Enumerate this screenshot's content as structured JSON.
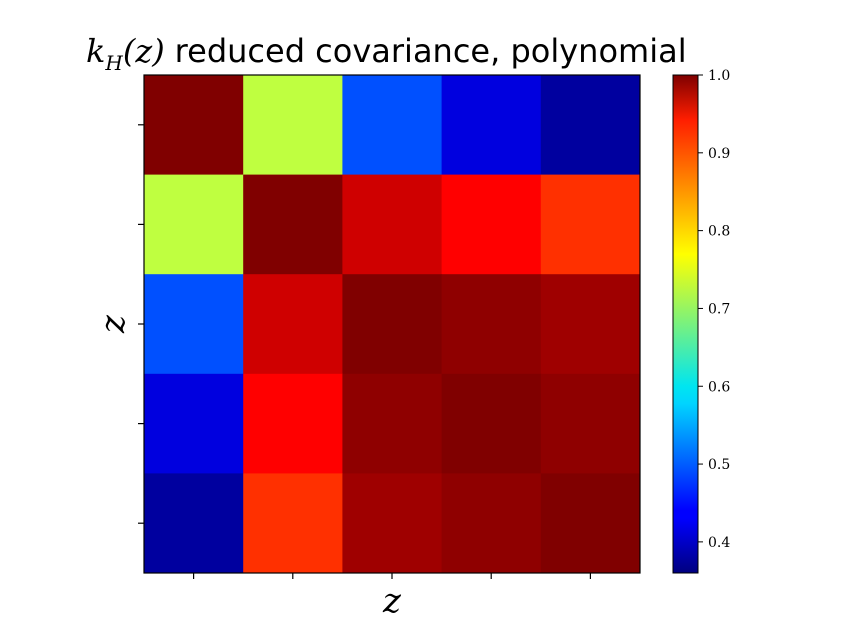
{
  "chart_data": {
    "type": "heatmap",
    "title_math": "k",
    "title_subscript": "H",
    "title_math_args": "(z)",
    "title_text": "reduced covariance, polynomial",
    "xlabel": "z",
    "ylabel": "z",
    "colormap": "jet",
    "color_range": [
      0.36,
      1.0
    ],
    "matrix": [
      [
        1.0,
        0.72,
        0.49,
        0.42,
        0.38
      ],
      [
        0.72,
        1.0,
        0.95,
        0.92,
        0.89
      ],
      [
        0.49,
        0.95,
        1.0,
        0.99,
        0.98
      ],
      [
        0.42,
        0.92,
        0.99,
        1.0,
        0.99
      ],
      [
        0.38,
        0.89,
        0.98,
        0.99,
        1.0
      ]
    ],
    "colorbar_ticks": [
      "1.0",
      "0.9",
      "0.8",
      "0.7",
      "0.6",
      "0.5",
      "0.4"
    ],
    "colorbar_tick_values": [
      1.0,
      0.9,
      0.8,
      0.7,
      0.6,
      0.5,
      0.4
    ],
    "x_tick_count": 5,
    "y_tick_count": 5
  }
}
